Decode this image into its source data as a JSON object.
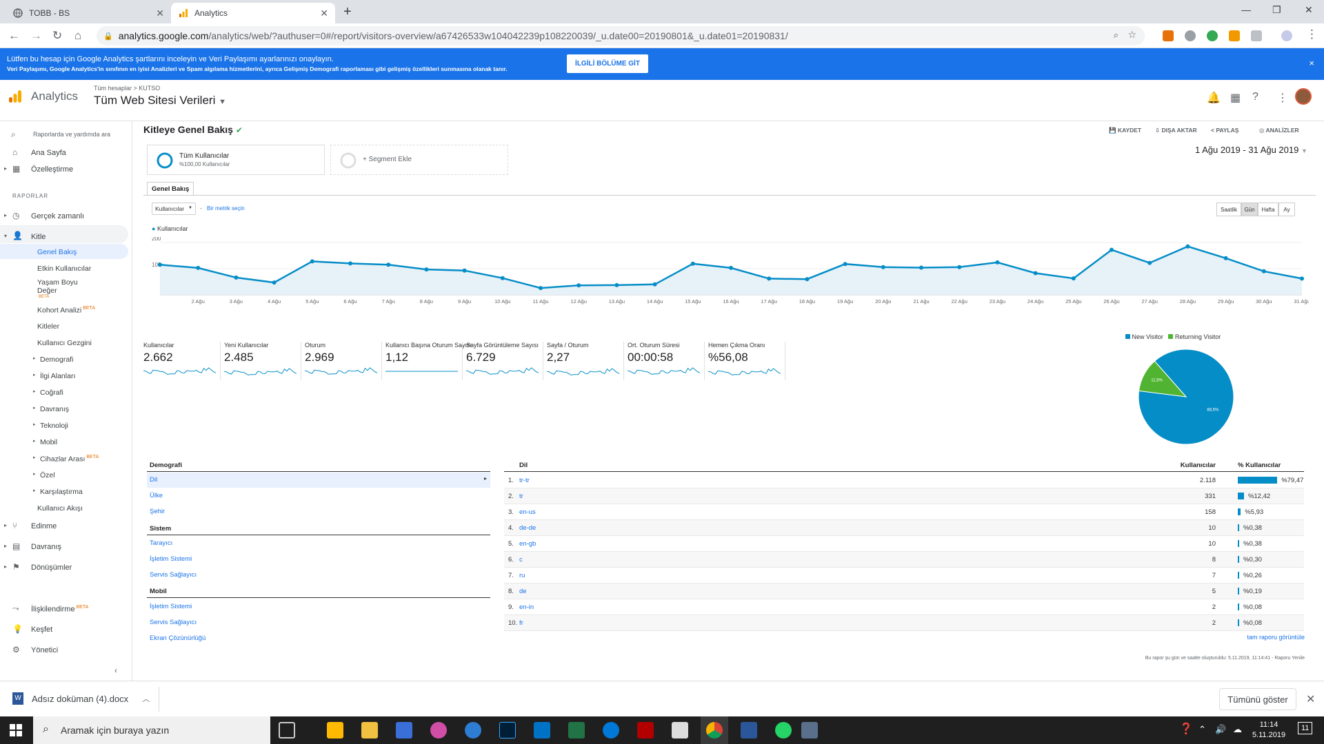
{
  "browser": {
    "tabs": [
      {
        "title": "TOBB - BS"
      },
      {
        "title": "Analytics"
      }
    ],
    "url_host": "analytics.google.com",
    "url_path": "/analytics/web/?authuser=0#/report/visitors-overview/a67426533w104042239p108220039/_u.date00=20190801&_u.date01=20190831/"
  },
  "banner": {
    "line1": "Lütfen bu hesap için Google Analytics şartlarını inceleyin ve Veri Paylaşımı ayarlarınızı onaylayın.",
    "line2": "Veri Paylaşımı, Google Analytics'in sınıfının en iyisi Analizleri ve Spam algılama hizmetlerini, ayrıca Gelişmiş Demografi raporlaması gibi gelişmiş özellikleri sunmasına olanak tanır.",
    "button": "İLGİLİ BÖLÜME GİT",
    "close": "×"
  },
  "header": {
    "app_title": "Analytics",
    "breadcrumb": "Tüm hesaplar > KUTSO",
    "property": "Tüm Web Sitesi Verileri"
  },
  "sidebar": {
    "search_placeholder": "Raporlarda ve yardımda ara",
    "home": "Ana Sayfa",
    "customize": "Özelleştirme",
    "reports_label": "RAPORLAR",
    "realtime": "Gerçek zamanlı",
    "audience": "Kitle",
    "audience_items": [
      {
        "label": "Genel Bakış"
      },
      {
        "label": "Etkin Kullanıcılar"
      },
      {
        "label": "Yaşam Boyu Değer",
        "beta": "BETA"
      },
      {
        "label": "Kohort Analizi",
        "beta": "BETA"
      },
      {
        "label": "Kitleler"
      },
      {
        "label": "Kullanıcı Gezgini"
      },
      {
        "label": "Demografi"
      },
      {
        "label": "İlgi Alanları"
      },
      {
        "label": "Coğrafi"
      },
      {
        "label": "Davranış"
      },
      {
        "label": "Teknoloji"
      },
      {
        "label": "Mobil"
      },
      {
        "label": "Cihazlar Arası",
        "beta": "BETA"
      },
      {
        "label": "Özel"
      },
      {
        "label": "Karşılaştırma"
      },
      {
        "label": "Kullanıcı Akışı"
      }
    ],
    "acquisition": "Edinme",
    "behavior": "Davranış",
    "conversions": "Dönüşümler",
    "attribution": "İlişkilendirme",
    "attribution_beta": "BETA",
    "discover": "Keşfet",
    "admin": "Yönetici"
  },
  "main": {
    "title": "Kitleye Genel Bakış",
    "actions": {
      "save": "KAYDET",
      "export": "DIŞA AKTAR",
      "share": "PAYLAŞ",
      "insights": "ANALİZLER"
    },
    "segment1_name": "Tüm Kullanıcılar",
    "segment1_sub": "%100,00 Kullanıcılar",
    "segment2": "+ Segment Ekle",
    "date_range": "1 Ağu 2019 - 31 Ağu 2019",
    "tab": "Genel Bakış",
    "metric_select": "Kullanıcılar",
    "metric_link": "Bir metrik seçin",
    "granularity": [
      "Saatlik",
      "Gün",
      "Hafta",
      "Ay"
    ],
    "legend": "Kullanıcılar"
  },
  "chart_data": {
    "type": "area",
    "series": [
      {
        "name": "Kullanıcılar",
        "values": [
          115,
          103,
          66,
          47,
          128,
          120,
          115,
          97,
          93,
          64,
          26,
          36,
          37,
          40,
          119,
          103,
          62,
          60,
          118,
          106,
          104,
          106,
          124,
          83,
          63,
          172,
          122,
          185,
          140,
          90,
          62
        ]
      }
    ],
    "x_tick_labels": [
      "2 Ağu",
      "3 Ağu",
      "4 Ağu",
      "5 Ağu",
      "6 Ağu",
      "7 Ağu",
      "8 Ağu",
      "9 Ağu",
      "10 Ağu",
      "11 Ağu",
      "12 Ağu",
      "13 Ağu",
      "14 Ağu",
      "15 Ağu",
      "16 Ağu",
      "17 Ağu",
      "18 Ağu",
      "19 Ağu",
      "20 Ağu",
      "21 Ağu",
      "22 Ağu",
      "23 Ağu",
      "24 Ağu",
      "25 Ağu",
      "26 Ağu",
      "27 Ağu",
      "28 Ağu",
      "29 Ağu",
      "30 Ağu",
      "31 Ağu"
    ],
    "y_ticks": [
      "200",
      "100"
    ],
    "ylim": [
      0,
      200
    ],
    "color": "#058dc7"
  },
  "scorecards": [
    {
      "label": "Kullanıcılar",
      "value": "2.662"
    },
    {
      "label": "Yeni Kullanıcılar",
      "value": "2.485"
    },
    {
      "label": "Oturum",
      "value": "2.969"
    },
    {
      "label": "Kullanıcı Başına Oturum Sayısı",
      "value": "1,12"
    },
    {
      "label": "Sayfa Görüntüleme Sayısı",
      "value": "6.729"
    },
    {
      "label": "Sayfa / Oturum",
      "value": "2,27"
    },
    {
      "label": "Ort. Oturum Süresi",
      "value": "00:00:58"
    },
    {
      "label": "Hemen Çıkma Oranı",
      "value": "%56,08"
    }
  ],
  "pie": {
    "legend": [
      "New Visitor",
      "Returning Visitor"
    ],
    "values": [
      88.5,
      11.5
    ],
    "labels": [
      "88,5%",
      "11,5%"
    ],
    "colors": [
      "#058dc7",
      "#50b432"
    ]
  },
  "demography": {
    "heading": "Demografi",
    "items": [
      "Dil",
      "Ülke",
      "Şehir"
    ],
    "system_heading": "Sistem",
    "system_items": [
      "Tarayıcı",
      "İşletim Sistemi",
      "Servis Sağlayıcı"
    ],
    "mobile_heading": "Mobil",
    "mobile_items": [
      "İşletim Sistemi",
      "Servis Sağlayıcı",
      "Ekran Çözünürlüğü"
    ]
  },
  "language_table": {
    "heading": "Dil",
    "col_users": "Kullanıcılar",
    "col_pct": "% Kullanıcılar",
    "rows": [
      {
        "idx": "1.",
        "lang": "tr-tr",
        "users": "2.118",
        "pct": "%79,47",
        "frac": 0.7947
      },
      {
        "idx": "2.",
        "lang": "tr",
        "users": "331",
        "pct": "%12,42",
        "frac": 0.1242
      },
      {
        "idx": "3.",
        "lang": "en-us",
        "users": "158",
        "pct": "%5,93",
        "frac": 0.0593
      },
      {
        "idx": "4.",
        "lang": "de-de",
        "users": "10",
        "pct": "%0,38",
        "frac": 0.0038
      },
      {
        "idx": "5.",
        "lang": "en-gb",
        "users": "10",
        "pct": "%0,38",
        "frac": 0.0038
      },
      {
        "idx": "6.",
        "lang": "c",
        "users": "8",
        "pct": "%0,30",
        "frac": 0.003
      },
      {
        "idx": "7.",
        "lang": "ru",
        "users": "7",
        "pct": "%0,26",
        "frac": 0.0026
      },
      {
        "idx": "8.",
        "lang": "de",
        "users": "5",
        "pct": "%0,19",
        "frac": 0.0019
      },
      {
        "idx": "9.",
        "lang": "en-in",
        "users": "2",
        "pct": "%0,08",
        "frac": 0.0008
      },
      {
        "idx": "10.",
        "lang": "fr",
        "users": "2",
        "pct": "%0,08",
        "frac": 0.0008
      }
    ],
    "full_report": "tam raporu görüntüle",
    "footnote": "Bu rapor şu gün ve saatte oluşturuldu: 5.11.2019, 11:14:41 - Raporu Yenile"
  },
  "downloads": {
    "file": "Adsız doküman (4).docx",
    "show_all": "Tümünü göster"
  },
  "taskbar": {
    "search": "Aramak için buraya yazın",
    "time": "11:14",
    "date": "5.11.2019",
    "notifications": "11"
  }
}
